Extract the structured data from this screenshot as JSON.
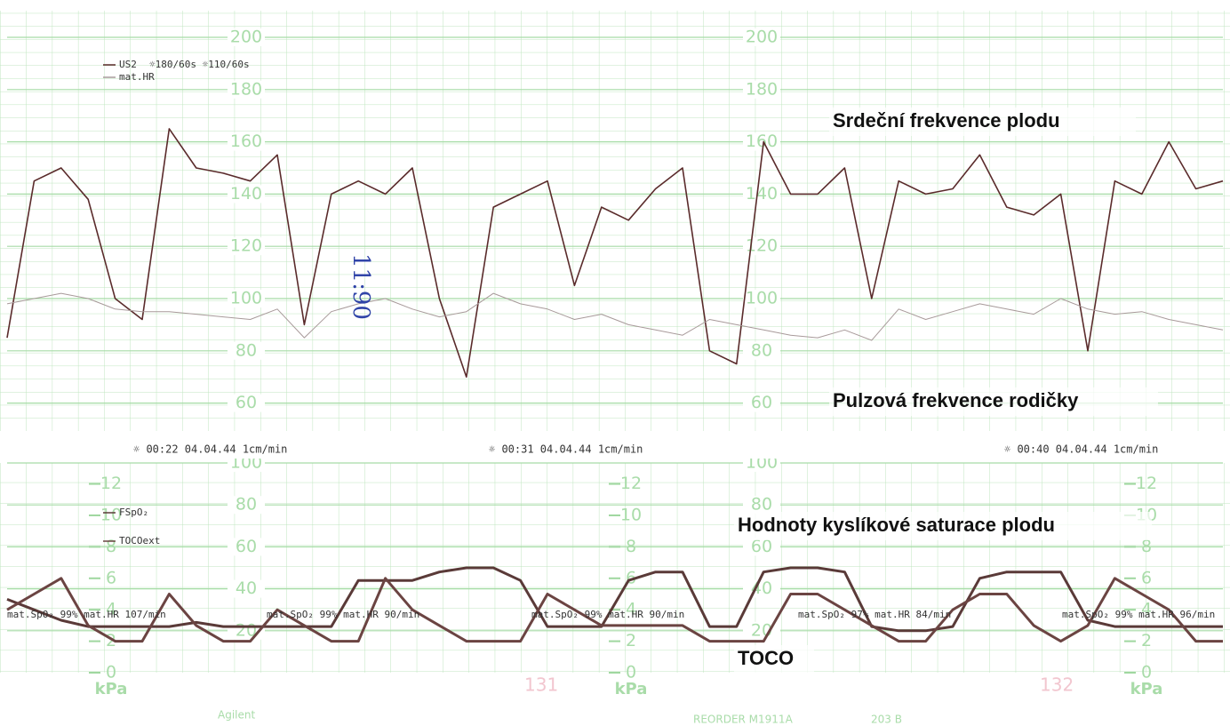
{
  "chart_data": [
    {
      "type": "line",
      "title": "Srdeční frekvence plodu",
      "subtitle": "Pulzová frekvence rodičky",
      "legend": [
        "US2",
        "mat.HR"
      ],
      "scale_note": "☼180/60s  ☼110/60s",
      "ylim": [
        50,
        210
      ],
      "yticks": [
        60,
        80,
        100,
        120,
        140,
        160,
        180,
        200
      ],
      "grid": true,
      "series": [
        {
          "name": "US2",
          "color": "#5a2b2b",
          "values": [
            85,
            145,
            150,
            138,
            100,
            92,
            165,
            150,
            148,
            145,
            155,
            90,
            140,
            145,
            140,
            150,
            100,
            70,
            135,
            140,
            145,
            105,
            135,
            130,
            142,
            150,
            80,
            75,
            160,
            140,
            140,
            150,
            100,
            145,
            140,
            142,
            155,
            135,
            132,
            140,
            80,
            145,
            140,
            160,
            142,
            145
          ]
        },
        {
          "name": "mat.HR",
          "color": "#a89a9a",
          "values": [
            98,
            100,
            102,
            100,
            96,
            95,
            95,
            94,
            93,
            92,
            96,
            85,
            95,
            98,
            100,
            96,
            93,
            95,
            102,
            98,
            96,
            92,
            94,
            90,
            88,
            86,
            92,
            90,
            88,
            86,
            85,
            88,
            84,
            96,
            92,
            95,
            98,
            96,
            94,
            100,
            96,
            94,
            95,
            92,
            90,
            88
          ]
        }
      ]
    },
    {
      "type": "line",
      "title": "Hodnoty kyslíkové saturace plodu",
      "subtitle": "TOCO",
      "legend": [
        "FSpO₂",
        "TOCOext"
      ],
      "ylim": [
        0,
        100
      ],
      "yticks": [
        20,
        40,
        60,
        80,
        100
      ],
      "y2label": "kPa",
      "y2lim": [
        0,
        13.33
      ],
      "y2ticks": [
        0,
        2,
        4,
        6,
        8,
        10,
        12
      ],
      "grid": true,
      "series": [
        {
          "name": "FSpO₂",
          "color": "#5a3a38",
          "values": [
            35,
            30,
            25,
            22,
            22,
            22,
            22,
            24,
            22,
            22,
            22,
            22,
            22,
            44,
            44,
            44,
            48,
            50,
            50,
            44,
            22,
            22,
            22,
            44,
            48,
            48,
            22,
            22,
            48,
            50,
            50,
            48,
            22,
            20,
            20,
            22,
            45,
            48,
            48,
            48,
            25,
            22,
            22,
            22,
            22,
            22
          ]
        },
        {
          "name": "TOCOext",
          "color": "#6b4442",
          "axis": "y2",
          "values": [
            4,
            5,
            6,
            3,
            2,
            2,
            5,
            3,
            2,
            2,
            4,
            3,
            2,
            2,
            6,
            4,
            3,
            2,
            2,
            2,
            5,
            4,
            3,
            3,
            3,
            3,
            2,
            2,
            2,
            5,
            5,
            4,
            3,
            2,
            2,
            4,
            5,
            5,
            3,
            2,
            3,
            6,
            5,
            4,
            2,
            2
          ]
        }
      ],
      "boxes": [
        "mat.SpO₂ 99%  mat.HR 107/min",
        "mat.SpO₂ 99%  mat.HR 90/min",
        "mat.SpO₂ 99%  mat.HR 90/min",
        "mat.SpO₂ 97%  mat.HR 84/min",
        "mat.SpO₂ 99%  mat.HR 96/min"
      ]
    }
  ],
  "status": [
    "☼ 00:22 04.04.44 1cm/min",
    "☼ 00:31 04.04.44 1cm/min",
    "☼ 00:40 04.04.44 1cm/min"
  ],
  "pages": [
    "131",
    "132"
  ],
  "footer": [
    "Agilent",
    "REORDER M1911A",
    "203 B"
  ],
  "handwritten": "11:90"
}
